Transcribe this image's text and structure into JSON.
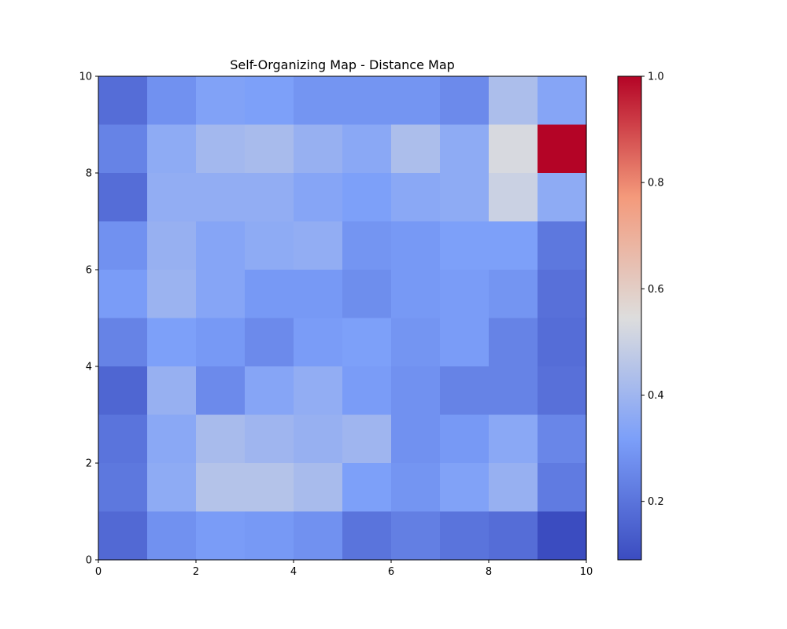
{
  "chart_data": {
    "type": "heatmap",
    "title": "Self-Organizing Map - Distance Map",
    "xlabel": "",
    "ylabel": "",
    "xlim": [
      0,
      10
    ],
    "ylim": [
      0,
      10
    ],
    "x_ticks": [
      "0",
      "2",
      "4",
      "6",
      "8",
      "10"
    ],
    "y_ticks": [
      "0",
      "2",
      "4",
      "6",
      "8",
      "10"
    ],
    "colormap": "coolwarm",
    "colorbar": {
      "range": [
        0.09,
        1.0
      ],
      "ticks": [
        "0.2",
        "0.4",
        "0.6",
        "0.8",
        "1.0"
      ],
      "tick_values": [
        0.2,
        0.4,
        0.6,
        0.8,
        1.0
      ]
    },
    "grid": false,
    "rows_top_to_bottom": [
      [
        0.18,
        0.28,
        0.33,
        0.32,
        0.29,
        0.29,
        0.29,
        0.26,
        0.43,
        0.34
      ],
      [
        0.24,
        0.36,
        0.41,
        0.42,
        0.38,
        0.35,
        0.43,
        0.36,
        0.53,
        1.0
      ],
      [
        0.18,
        0.37,
        0.37,
        0.37,
        0.34,
        0.32,
        0.35,
        0.36,
        0.5,
        0.36
      ],
      [
        0.28,
        0.38,
        0.34,
        0.36,
        0.37,
        0.29,
        0.3,
        0.32,
        0.32,
        0.21
      ],
      [
        0.31,
        0.39,
        0.34,
        0.3,
        0.3,
        0.27,
        0.3,
        0.31,
        0.29,
        0.19
      ],
      [
        0.24,
        0.32,
        0.3,
        0.26,
        0.31,
        0.32,
        0.29,
        0.31,
        0.24,
        0.18
      ],
      [
        0.16,
        0.38,
        0.26,
        0.34,
        0.37,
        0.31,
        0.28,
        0.24,
        0.24,
        0.19
      ],
      [
        0.2,
        0.35,
        0.42,
        0.4,
        0.38,
        0.4,
        0.28,
        0.3,
        0.35,
        0.25
      ],
      [
        0.21,
        0.36,
        0.45,
        0.45,
        0.42,
        0.32,
        0.29,
        0.33,
        0.38,
        0.22
      ],
      [
        0.17,
        0.28,
        0.31,
        0.3,
        0.28,
        0.2,
        0.23,
        0.2,
        0.18,
        0.09
      ]
    ]
  }
}
